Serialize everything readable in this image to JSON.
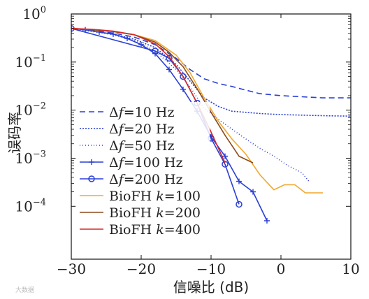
{
  "chart_data": {
    "type": "line",
    "xlabel": "信噪比 (dB)",
    "ylabel": "误码率",
    "xlim": [
      -30,
      10
    ],
    "ylim": [
      0.0001,
      1
    ],
    "yscale": "log",
    "x_ticks": [
      {
        "value": -30,
        "label": "−30"
      },
      {
        "value": -20,
        "label": "−20"
      },
      {
        "value": -10,
        "label": "−10"
      },
      {
        "value": 0,
        "label": "0"
      },
      {
        "value": 10,
        "label": "10"
      }
    ],
    "y_ticks": [
      {
        "value": 1,
        "base": "10",
        "exp": "0"
      },
      {
        "value": 0.1,
        "base": "10",
        "exp": "−1"
      },
      {
        "value": 0.01,
        "base": "10",
        "exp": "−2"
      },
      {
        "value": 0.001,
        "base": "10",
        "exp": "−3"
      },
      {
        "value": 0.0001,
        "base": "10",
        "exp": "−4"
      }
    ],
    "legend_position": "lower-left",
    "series": [
      {
        "name": "Δf=10 Hz",
        "label_pre": "Δ",
        "label_italic": "f",
        "label_post": "=10 Hz",
        "color": "#2a3fd4",
        "dash": "8,5",
        "marker": "none",
        "x": [
          -30,
          -27,
          -24,
          -21,
          -18,
          -15,
          -13,
          -11,
          -9,
          -7,
          -5,
          -3,
          0,
          3,
          6,
          10
        ],
        "y": [
          0.5,
          0.45,
          0.4,
          0.33,
          0.23,
          0.12,
          0.07,
          0.045,
          0.036,
          0.031,
          0.026,
          0.022,
          0.02,
          0.019,
          0.018,
          0.018
        ]
      },
      {
        "name": "Δf=20 Hz",
        "label_pre": "Δ",
        "label_italic": "f",
        "label_post": "=20 Hz",
        "color": "#2a3fd4",
        "dash": "2,2",
        "marker": "none",
        "x": [
          -30,
          -27,
          -24,
          -21,
          -18,
          -15,
          -13,
          -11,
          -9,
          -7,
          -5,
          -3,
          -1,
          1,
          4,
          7,
          10
        ],
        "y": [
          0.5,
          0.44,
          0.38,
          0.3,
          0.2,
          0.09,
          0.04,
          0.018,
          0.012,
          0.0095,
          0.009,
          0.0085,
          0.0082,
          0.008,
          0.0078,
          0.0076,
          0.0075
        ]
      },
      {
        "name": "Δf=50 Hz",
        "label_pre": "Δ",
        "label_italic": "f",
        "label_post": "=50 Hz",
        "color": "#2a3fd4",
        "dash": "1,3",
        "marker": "none",
        "x": [
          -30,
          -27,
          -24,
          -21,
          -18,
          -15,
          -13,
          -11,
          -9,
          -7,
          -5,
          -3,
          -1,
          1,
          3,
          4
        ],
        "y": [
          0.5,
          0.43,
          0.37,
          0.28,
          0.17,
          0.07,
          0.03,
          0.011,
          0.0065,
          0.004,
          0.0025,
          0.0016,
          0.0011,
          0.0007,
          0.0005,
          0.00033
        ]
      },
      {
        "name": "Δf=100 Hz",
        "label_pre": "Δ",
        "label_italic": "f",
        "label_post": "=100 Hz",
        "color": "#2a3fd4",
        "dash": "",
        "marker": "plus",
        "x": [
          -30,
          -28,
          -26,
          -24,
          -22,
          -20,
          -18,
          -16,
          -14,
          -12,
          -10,
          -8,
          -6,
          -4,
          -2
        ],
        "y": [
          0.5,
          0.47,
          0.42,
          0.38,
          0.31,
          0.23,
          0.15,
          0.07,
          0.027,
          0.0095,
          0.0028,
          0.0011,
          0.00033,
          0.0002,
          5e-05
        ]
      },
      {
        "name": "Δf=200 Hz",
        "label_pre": "Δ",
        "label_italic": "f",
        "label_post": "=200 Hz",
        "color": "#2a3fd4",
        "dash": "",
        "marker": "circle",
        "x": [
          -30,
          -18,
          -16,
          -14,
          -12,
          -10,
          -8,
          -6
        ],
        "y": [
          0.5,
          0.17,
          0.12,
          0.05,
          0.014,
          0.0026,
          0.00075,
          0.00011
        ]
      },
      {
        "name": "BioFH k=100",
        "label_pre": "BioFH ",
        "label_italic": "k",
        "label_post": "=100",
        "color": "#f0a830",
        "dash": "",
        "marker": "none",
        "x": [
          -30,
          -27,
          -24,
          -21,
          -18,
          -15,
          -13,
          -11,
          -9,
          -7,
          -5,
          -3,
          -1,
          0.5,
          2,
          3.5,
          4.5,
          6
        ],
        "y": [
          0.5,
          0.47,
          0.43,
          0.37,
          0.28,
          0.14,
          0.06,
          0.018,
          0.006,
          0.0025,
          0.0012,
          0.00045,
          0.00022,
          0.00028,
          0.00028,
          0.00019,
          0.00019,
          0.00019
        ]
      },
      {
        "name": "BioFH k=200",
        "label_pre": "BioFH ",
        "label_italic": "k",
        "label_post": "=200",
        "color": "#8b4a1c",
        "dash": "",
        "marker": "none",
        "x": [
          -30,
          -27,
          -24,
          -21,
          -18,
          -16,
          -14,
          -12,
          -10,
          -8,
          -6,
          -4
        ],
        "y": [
          0.5,
          0.47,
          0.43,
          0.37,
          0.26,
          0.16,
          0.08,
          0.028,
          0.009,
          0.003,
          0.0011,
          0.0008
        ]
      },
      {
        "name": "BioFH k=400",
        "label_pre": "BioFH ",
        "label_italic": "k",
        "label_post": "=400",
        "color": "#d42a2a",
        "dash": "",
        "marker": "none",
        "x": [
          -30,
          -27,
          -24,
          -21,
          -18,
          -16,
          -14,
          -12,
          -10,
          -8
        ],
        "y": [
          0.5,
          0.48,
          0.44,
          0.37,
          0.24,
          0.13,
          0.05,
          0.014,
          0.0035,
          0.0008
        ]
      }
    ]
  },
  "watermark": "大数据"
}
